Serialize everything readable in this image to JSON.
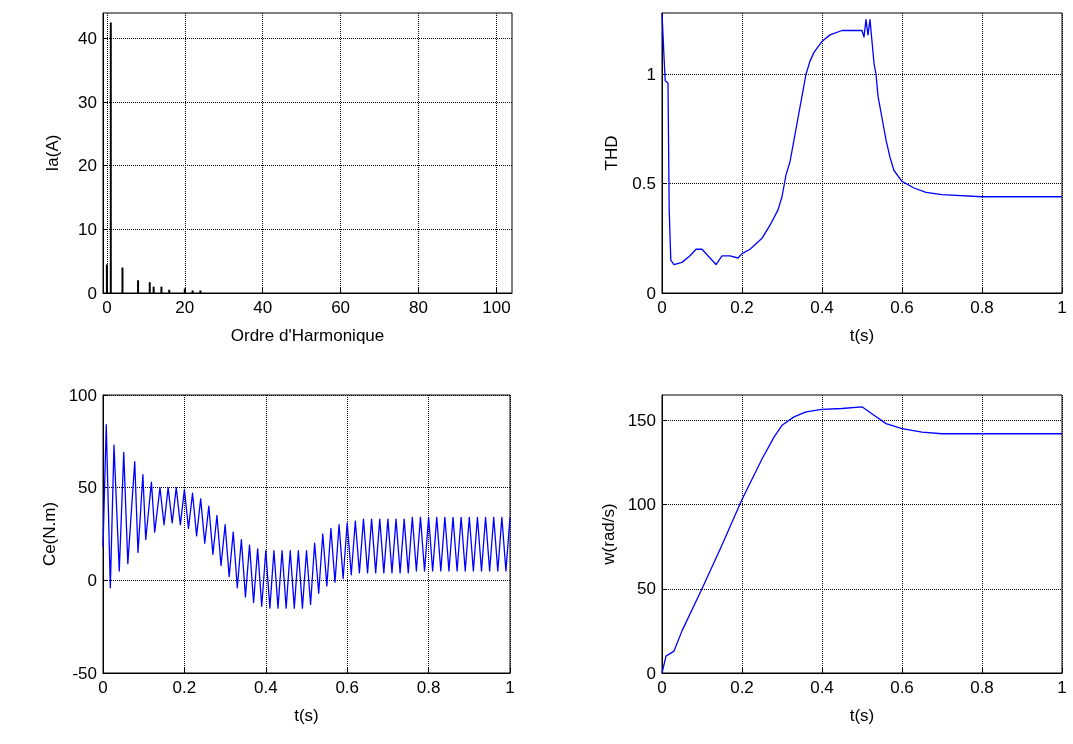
{
  "chart_data": [
    {
      "type": "bar",
      "xlabel": "Ordre d'Harmonique",
      "ylabel": "Ia(A)",
      "grid": true,
      "x": [
        0,
        1,
        4,
        8,
        11,
        12,
        14,
        16,
        20,
        22,
        24
      ],
      "series": [
        {
          "color": "#000000",
          "values": [
            4.5,
            42.5,
            4,
            2,
            1.7,
            1,
            1,
            0.5,
            0.7,
            0.4,
            0.4
          ]
        }
      ],
      "xlim": [
        -1,
        104
      ],
      "xticks": [
        0,
        20,
        40,
        60,
        80,
        100
      ],
      "ylim": [
        0,
        44
      ],
      "yticks": [
        0,
        10,
        20,
        30,
        40
      ]
    },
    {
      "type": "line",
      "xlabel": "t(s)",
      "ylabel": "THD",
      "grid": true,
      "x": [
        0,
        0.005,
        0.008,
        0.015,
        0.018,
        0.022,
        0.03,
        0.05,
        0.07,
        0.085,
        0.1,
        0.12,
        0.135,
        0.15,
        0.17,
        0.19,
        0.2,
        0.22,
        0.25,
        0.27,
        0.29,
        0.3,
        0.31,
        0.32,
        0.33,
        0.34,
        0.35,
        0.36,
        0.37,
        0.38,
        0.4,
        0.42,
        0.45,
        0.5,
        0.505,
        0.51,
        0.515,
        0.52,
        0.525,
        0.53,
        0.535,
        0.54,
        0.55,
        0.56,
        0.57,
        0.58,
        0.6,
        0.63,
        0.66,
        0.7,
        0.8,
        1
      ],
      "series": [
        {
          "color": "#0000ff",
          "values": [
            1.28,
            1.08,
            0.97,
            0.96,
            0.38,
            0.15,
            0.13,
            0.14,
            0.17,
            0.2,
            0.2,
            0.16,
            0.13,
            0.17,
            0.17,
            0.16,
            0.18,
            0.2,
            0.25,
            0.31,
            0.38,
            0.44,
            0.54,
            0.6,
            0.7,
            0.8,
            0.9,
            1.0,
            1.06,
            1.1,
            1.15,
            1.18,
            1.2,
            1.2,
            1.17,
            1.25,
            1.18,
            1.25,
            1.15,
            1.05,
            1.0,
            0.9,
            0.8,
            0.7,
            0.62,
            0.56,
            0.51,
            0.48,
            0.46,
            0.45,
            0.44,
            0.44
          ]
        }
      ],
      "xlim": [
        0,
        1
      ],
      "xticks": [
        0,
        0.2,
        0.4,
        0.6,
        0.8,
        1
      ],
      "ylim": [
        0,
        1.28
      ],
      "yticks": [
        0,
        0.5,
        1
      ]
    },
    {
      "type": "line",
      "xlabel": "t(s)",
      "ylabel": "Ce(N.m)",
      "grid": true,
      "x": [
        0,
        0.008,
        0.018,
        0.027,
        0.04,
        0.051,
        0.061,
        0.078,
        0.086,
        0.098,
        0.105,
        0.119,
        0.127,
        0.14,
        0.15,
        0.16,
        0.17,
        0.18,
        0.19,
        0.2,
        0.21,
        0.22,
        0.23,
        0.24,
        0.25,
        0.26,
        0.27,
        0.28,
        0.29,
        0.3,
        0.31,
        0.32,
        0.33,
        0.34,
        0.35,
        0.36,
        0.37,
        0.38,
        0.39,
        0.4,
        0.41,
        0.42,
        0.43,
        0.44,
        0.45,
        0.46,
        0.47,
        0.48,
        0.49,
        0.5,
        0.51,
        0.52,
        0.53,
        0.54,
        0.55,
        0.56,
        0.57,
        0.58,
        0.59,
        0.6,
        0.61,
        0.62,
        0.63,
        0.64,
        0.65,
        0.66,
        0.67,
        0.68,
        0.69,
        0.7,
        0.71,
        0.72,
        0.73,
        0.74,
        0.75,
        0.76,
        0.77,
        0.78,
        0.79,
        0.8,
        0.81,
        0.82,
        0.83,
        0.84,
        0.85,
        0.86,
        0.87,
        0.88,
        0.89,
        0.9,
        0.91,
        0.92,
        0.93,
        0.94,
        0.95,
        0.96,
        0.97,
        0.98,
        0.99,
        1
      ],
      "series": [
        {
          "color": "#0000ff",
          "values": [
            18,
            84,
            -4,
            73,
            5,
            69,
            9,
            64,
            15,
            57,
            22,
            53,
            26,
            50,
            30,
            50,
            31,
            50,
            30,
            49,
            28,
            47,
            24,
            44,
            20,
            40,
            14,
            35,
            8,
            30,
            2,
            26,
            -4,
            22,
            -9,
            19,
            -12,
            17,
            -14,
            16,
            -15,
            16,
            -15,
            16,
            -15,
            16,
            -15,
            16,
            -15,
            16,
            -13,
            20,
            -7,
            25,
            -3,
            28,
            -1,
            30,
            1,
            31,
            3,
            32,
            4,
            33,
            4,
            33,
            4,
            33,
            4,
            33,
            4,
            33,
            4,
            33,
            4,
            34,
            5,
            34,
            5,
            34,
            5,
            34,
            5,
            34,
            5,
            34,
            5,
            34,
            5,
            34,
            5,
            34,
            5,
            34,
            5,
            34,
            5,
            34,
            5,
            34
          ]
        }
      ],
      "xlim": [
        0,
        1
      ],
      "xticks": [
        0,
        0.2,
        0.4,
        0.6,
        0.8,
        1
      ],
      "ylim": [
        -50,
        100
      ],
      "yticks": [
        -50,
        0,
        50,
        100
      ]
    },
    {
      "type": "line",
      "xlabel": "t(s)",
      "ylabel": "w(rad/s)",
      "grid": true,
      "x": [
        0,
        0.01,
        0.03,
        0.05,
        0.1,
        0.15,
        0.2,
        0.25,
        0.28,
        0.3,
        0.33,
        0.36,
        0.4,
        0.45,
        0.5,
        0.53,
        0.56,
        0.6,
        0.65,
        0.7,
        1
      ],
      "series": [
        {
          "color": "#0000ff",
          "values": [
            0,
            10,
            13,
            25,
            50,
            76,
            103,
            127,
            140,
            147,
            152,
            155,
            156.5,
            157,
            158,
            153,
            148,
            145,
            143,
            142,
            142
          ]
        }
      ],
      "xlim": [
        0,
        1
      ],
      "xticks": [
        0,
        0.2,
        0.4,
        0.6,
        0.8,
        1
      ],
      "ylim": [
        0,
        165
      ],
      "yticks": [
        0,
        50,
        100,
        150
      ]
    }
  ]
}
